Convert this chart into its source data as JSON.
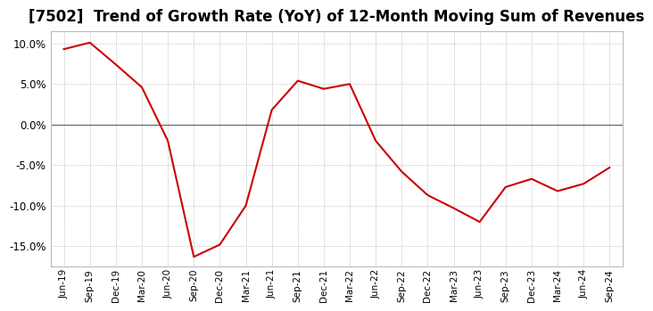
{
  "title": "[7502]  Trend of Growth Rate (YoY) of 12-Month Moving Sum of Revenues",
  "title_fontsize": 12,
  "line_color": "#cc0000",
  "background_color": "#ffffff",
  "plot_bg_color": "#ffffff",
  "grid_color": "#aaaaaa",
  "ylim": [
    -0.175,
    0.115
  ],
  "yticks": [
    0.1,
    0.05,
    0.0,
    -0.05,
    -0.1,
    -0.15
  ],
  "x_labels": [
    "Jun-19",
    "Sep-19",
    "Dec-19",
    "Mar-20",
    "Jun-20",
    "Sep-20",
    "Dec-20",
    "Mar-21",
    "Jun-21",
    "Sep-21",
    "Dec-21",
    "Mar-22",
    "Jun-22",
    "Sep-22",
    "Dec-22",
    "Mar-23",
    "Jun-23",
    "Sep-23",
    "Dec-23",
    "Mar-24",
    "Jun-24",
    "Sep-24"
  ],
  "y_values": [
    0.093,
    0.101,
    0.074,
    0.046,
    -0.02,
    -0.163,
    -0.148,
    -0.1,
    0.018,
    0.054,
    0.044,
    0.05,
    -0.02,
    -0.058,
    -0.087,
    -0.103,
    -0.12,
    -0.077,
    -0.067,
    -0.082,
    -0.073,
    -0.053
  ]
}
